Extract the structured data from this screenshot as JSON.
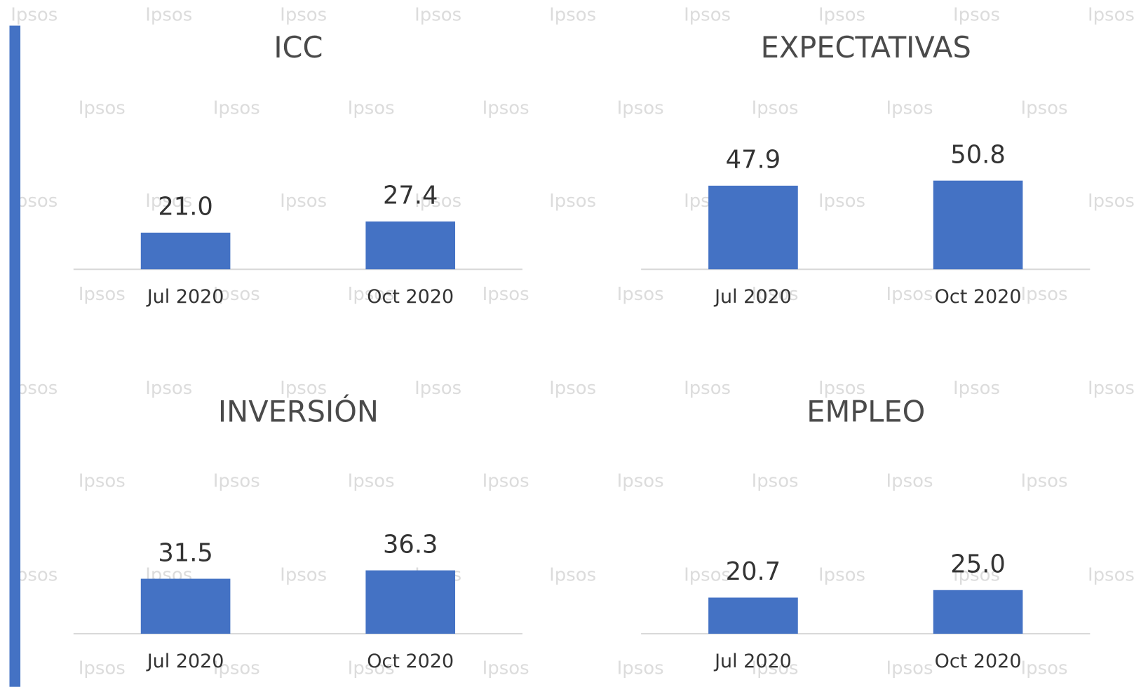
{
  "watermark": "Ipsos",
  "chart_data": [
    {
      "type": "bar",
      "title": "ICC",
      "categories": [
        "Jul 2020",
        "Oct 2020"
      ],
      "values": [
        21.0,
        27.4
      ],
      "value_labels": [
        "21.0",
        "27.4"
      ],
      "color": "#4472c4"
    },
    {
      "type": "bar",
      "title": "EXPECTATIVAS",
      "categories": [
        "Jul 2020",
        "Oct 2020"
      ],
      "values": [
        47.9,
        50.8
      ],
      "value_labels": [
        "47.9",
        "50.8"
      ],
      "color": "#4472c4"
    },
    {
      "type": "bar",
      "title": "INVERSIÓN",
      "categories": [
        "Jul 2020",
        "Oct 2020"
      ],
      "values": [
        31.5,
        36.3
      ],
      "value_labels": [
        "31.5",
        "36.3"
      ],
      "color": "#4472c4"
    },
    {
      "type": "bar",
      "title": "EMPLEO",
      "categories": [
        "Jul 2020",
        "Oct 2020"
      ],
      "values": [
        20.7,
        25.0
      ],
      "value_labels": [
        "20.7",
        "25.0"
      ],
      "color": "#4472c4"
    }
  ]
}
